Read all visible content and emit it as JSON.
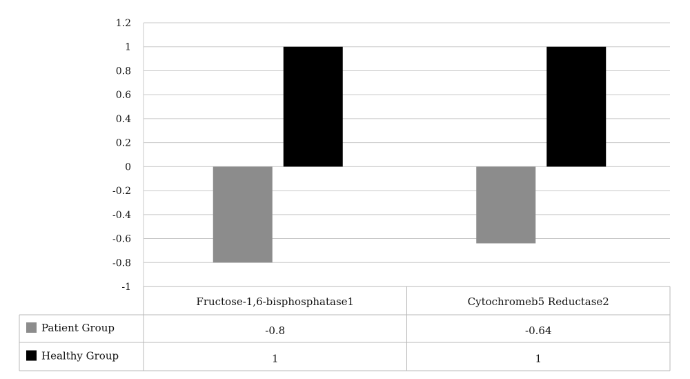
{
  "chart_data": {
    "type": "bar",
    "categories": [
      "Fructose-1,6-bisphosphatase1",
      "Cytochromeb5 Reductase2"
    ],
    "series": [
      {
        "name": "Patient Group",
        "values": [
          -0.8,
          -0.64
        ],
        "color": "#8c8c8c",
        "display_values": [
          "-0.8",
          "-0.64"
        ]
      },
      {
        "name": "Healthy Group",
        "values": [
          1,
          1
        ],
        "color": "#000000",
        "display_values": [
          "1",
          "1"
        ]
      }
    ],
    "yticks": [
      "1.2",
      "1",
      "0.8",
      "0.6",
      "0.4",
      "0.2",
      "0",
      "-0.2",
      "-0.4",
      "-0.6",
      "-0.8",
      "-1"
    ],
    "ylim": [
      -1,
      1.2
    ],
    "grid": true,
    "legend": "data-table-left"
  }
}
